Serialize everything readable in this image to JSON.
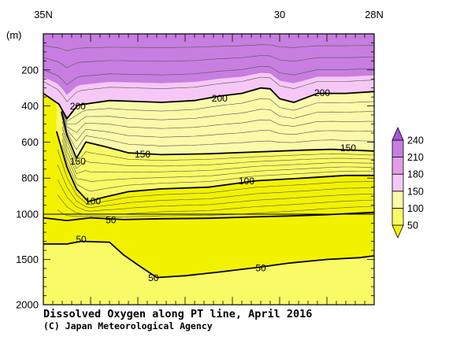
{
  "chart_data": {
    "type": "heatmap",
    "title": "Dissolved Oxygen along PT line, April 2016",
    "credit": "(C) Japan Meteorological Agency",
    "ylabel": "(m)",
    "x_ticklabels": [
      {
        "lat": 35,
        "label": "35N"
      },
      {
        "lat": 30,
        "label": "30"
      },
      {
        "lat": 28,
        "label": "28N"
      }
    ],
    "xlim": [
      35,
      28
    ],
    "y_ticklabels": [
      {
        "depth": 200,
        "label": "200"
      },
      {
        "depth": 400,
        "label": "400"
      },
      {
        "depth": 600,
        "label": "600"
      },
      {
        "depth": 800,
        "label": "800"
      },
      {
        "depth": 1000,
        "label": "1000"
      },
      {
        "depth": 1500,
        "label": "1500"
      },
      {
        "depth": 2000,
        "label": "2000"
      }
    ],
    "ylim": [
      0,
      2000
    ],
    "y_scale_break": {
      "depth": 1000,
      "note": "depth axis compressed below 1000 m"
    },
    "colorbar": {
      "levels": [
        50,
        100,
        150,
        180,
        210,
        240
      ],
      "labels": [
        "50",
        "100",
        "150",
        "180",
        "210",
        "240"
      ],
      "colors": [
        "#f2f200",
        "#fafa66",
        "#fafaaa",
        "#f6c8f6",
        "#e19ee6",
        "#c77ee0",
        "#a855d6"
      ]
    },
    "bold_contours": [
      {
        "value": 200,
        "labels": [
          {
            "text": "200",
            "lat": 34.27,
            "depth": 400
          },
          {
            "text": "200",
            "lat": 31.27,
            "depth": 355
          },
          {
            "text": "200",
            "lat": 29.1,
            "depth": 325
          }
        ],
        "points": [
          [
            35.0,
            330
          ],
          [
            34.67,
            390
          ],
          [
            34.5,
            470
          ],
          [
            34.27,
            395
          ],
          [
            33.6,
            370
          ],
          [
            33.0,
            375
          ],
          [
            32.5,
            380
          ],
          [
            31.8,
            370
          ],
          [
            31.27,
            345
          ],
          [
            30.8,
            330
          ],
          [
            30.4,
            300
          ],
          [
            30.2,
            305
          ],
          [
            30.0,
            360
          ],
          [
            29.7,
            380
          ],
          [
            29.2,
            330
          ],
          [
            28.6,
            330
          ],
          [
            28.0,
            320
          ]
        ]
      },
      {
        "value": 150,
        "labels": [
          {
            "text": "150",
            "lat": 34.27,
            "depth": 705
          },
          {
            "text": "150",
            "lat": 32.9,
            "depth": 665
          },
          {
            "text": "150",
            "lat": 28.55,
            "depth": 630
          }
        ],
        "points": [
          [
            34.62,
            430
          ],
          [
            34.5,
            560
          ],
          [
            34.3,
            690
          ],
          [
            34.1,
            600
          ],
          [
            33.7,
            625
          ],
          [
            33.2,
            660
          ],
          [
            32.5,
            670
          ],
          [
            31.5,
            665
          ],
          [
            30.5,
            655
          ],
          [
            29.5,
            645
          ],
          [
            28.9,
            640
          ],
          [
            28.0,
            650
          ]
        ]
      },
      {
        "value": 100,
        "labels": [
          {
            "text": "100",
            "lat": 33.95,
            "depth": 925
          },
          {
            "text": "100",
            "lat": 30.7,
            "depth": 815
          }
        ],
        "points": [
          [
            34.72,
            540
          ],
          [
            34.5,
            740
          ],
          [
            34.3,
            860
          ],
          [
            34.05,
            930
          ],
          [
            33.7,
            905
          ],
          [
            33.2,
            875
          ],
          [
            32.5,
            860
          ],
          [
            31.5,
            850
          ],
          [
            30.5,
            815
          ],
          [
            29.5,
            800
          ],
          [
            28.6,
            785
          ],
          [
            28.0,
            785
          ]
        ]
      },
      {
        "value": 50,
        "labels": [
          {
            "text": "50",
            "lat": 33.57,
            "depth": 1060
          },
          {
            "text": "50",
            "lat": 34.2,
            "depth": 1275
          },
          {
            "text": "50",
            "lat": 32.67,
            "depth": 1700
          },
          {
            "text": "50",
            "lat": 30.4,
            "depth": 1590
          }
        ],
        "points": [
          [
            35.0,
            1040
          ],
          [
            34.5,
            1070
          ],
          [
            34.0,
            1040
          ],
          [
            33.3,
            1060
          ],
          [
            32.5,
            1050
          ],
          [
            31.5,
            1045
          ],
          [
            30.5,
            1030
          ],
          [
            29.8,
            1020
          ],
          [
            29.0,
            1005
          ],
          [
            28.0,
            990
          ]
        ]
      }
    ]
  }
}
